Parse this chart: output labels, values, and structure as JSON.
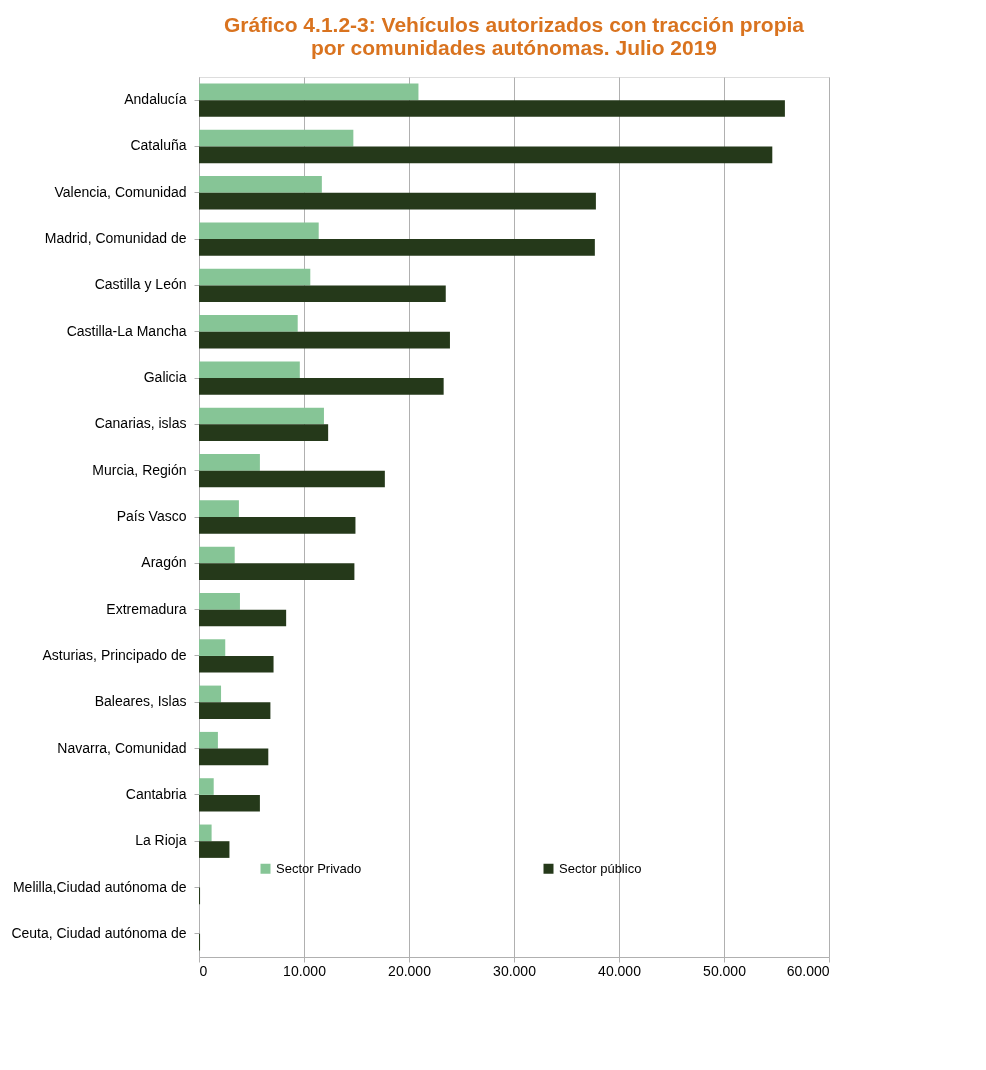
{
  "chart_data": {
    "type": "bar",
    "orientation": "horizontal",
    "title": [
      "Gráfico 4.1.2-3: Vehículos autorizados con tracción propia",
      "por comunidades autónomas. Julio 2019"
    ],
    "categories": [
      "Andalucía",
      "Cataluña",
      "Valencia, Comunidad",
      "Madrid, Comunidad de",
      "Castilla y León",
      "Castilla-La Mancha",
      "Galicia",
      "Canarias, islas",
      "Murcia, Región",
      "País Vasco",
      "Aragón",
      "Extremadura",
      "Asturias, Principado de",
      "Baleares, Islas",
      "Navarra, Comunidad",
      "Cantabria",
      "La Rioja",
      "Melilla,Ciudad autónoma de",
      "Ceuta, Ciudad autónoma de"
    ],
    "series": [
      {
        "name": "Sector Privado",
        "color": "#86c596",
        "values": [
          20900,
          14700,
          11700,
          11400,
          10600,
          9400,
          9600,
          11900,
          5800,
          3800,
          3400,
          3900,
          2500,
          2100,
          1800,
          1400,
          1200,
          null,
          null
        ]
      },
      {
        "name": "Sector público",
        "color": "#25391a",
        "values": [
          55800,
          54600,
          37800,
          37700,
          23500,
          23900,
          23300,
          12300,
          17700,
          14900,
          14800,
          8300,
          7100,
          6800,
          6600,
          5800,
          2900,
          100,
          100
        ]
      }
    ],
    "xlim": [
      0,
      60000
    ],
    "xticks": [
      0,
      {
        "value": 10000,
        "label": "10.000"
      },
      {
        "value": 20000,
        "label": "20.000"
      },
      {
        "value": 30000,
        "label": "30.000"
      },
      {
        "value": 40000,
        "label": "40.000"
      },
      {
        "value": 50000,
        "label": "50.000"
      },
      {
        "value": 60000,
        "label": "60.000"
      }
    ],
    "grid": "x",
    "legend": "bottom"
  }
}
